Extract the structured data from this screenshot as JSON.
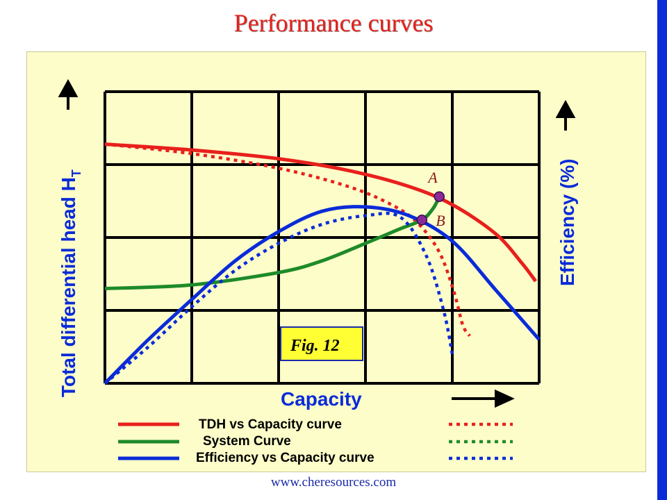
{
  "title": "Performance curves",
  "footer": "www.cheresources.com",
  "colors": {
    "tdh": "#e8201c",
    "system": "#1e8a2a",
    "efficiency": "#0a2bd8",
    "grid": "#000000",
    "panel": "#fdfdc9",
    "fig_box": "#ffff33",
    "point": "#8a2a9a"
  },
  "chart_data": {
    "type": "line",
    "title": "Performance curves",
    "xlabel": "Capacity",
    "ylabel": "Total differential head H",
    "ylabel_sub": "T",
    "y2label": "Efficiency (%)",
    "xlim": [
      0,
      5
    ],
    "ylim": [
      0,
      4
    ],
    "grid": true,
    "annotation": "Fig. 12",
    "points": [
      {
        "label": "A",
        "x": 3.85,
        "y": 2.56
      },
      {
        "label": "B",
        "x": 3.65,
        "y": 2.24
      }
    ],
    "series": [
      {
        "name": "TDH vs Capacity curve",
        "style": "solid",
        "color": "#e8201c",
        "x": [
          0,
          1,
          2,
          2.8,
          3.5,
          4.0,
          4.5,
          4.8,
          4.96
        ],
        "y": [
          3.28,
          3.2,
          3.08,
          2.92,
          2.7,
          2.45,
          2.05,
          1.65,
          1.4
        ]
      },
      {
        "name": "TDH vs Capacity curve",
        "style": "dotted",
        "color": "#e8201c",
        "x": [
          0,
          1,
          2,
          2.8,
          3.3,
          3.6,
          3.85,
          4.02,
          4.12,
          4.2
        ],
        "y": [
          3.28,
          3.15,
          2.95,
          2.7,
          2.45,
          2.2,
          1.8,
          1.25,
          0.8,
          0.65
        ]
      },
      {
        "name": "System Curve",
        "style": "solid",
        "color": "#1e8a2a",
        "x": [
          0,
          1,
          2,
          2.5,
          3.0,
          3.4,
          3.65,
          3.78,
          3.85
        ],
        "y": [
          1.3,
          1.35,
          1.52,
          1.68,
          1.92,
          2.12,
          2.24,
          2.4,
          2.56
        ]
      },
      {
        "name": "System Curve",
        "style": "dotted",
        "color": "#1e8a2a",
        "x": [],
        "y": []
      },
      {
        "name": "Efficiency vs Capacity curve",
        "style": "solid",
        "color": "#0a2bd8",
        "x": [
          0,
          0.5,
          1.0,
          1.5,
          2.0,
          2.5,
          3.0,
          3.5,
          4.0,
          4.5,
          5.0
        ],
        "y": [
          0,
          0.6,
          1.15,
          1.68,
          2.08,
          2.36,
          2.42,
          2.3,
          1.95,
          1.28,
          0.6
        ]
      },
      {
        "name": "Efficiency vs Capacity curve",
        "style": "dotted",
        "color": "#0a2bd8",
        "x": [
          0,
          0.5,
          1.0,
          1.5,
          2.0,
          2.5,
          3.0,
          3.4,
          3.7,
          3.9,
          4.0
        ],
        "y": [
          0,
          0.5,
          1.05,
          1.55,
          1.92,
          2.18,
          2.3,
          2.28,
          1.75,
          1.0,
          0.4
        ]
      }
    ],
    "legend": [
      {
        "label": "TDH vs Capacity curve",
        "color": "#e8201c"
      },
      {
        "label": "System Curve",
        "color": "#1e8a2a"
      },
      {
        "label": "Efficiency vs Capacity curve",
        "color": "#0a2bd8"
      }
    ]
  }
}
